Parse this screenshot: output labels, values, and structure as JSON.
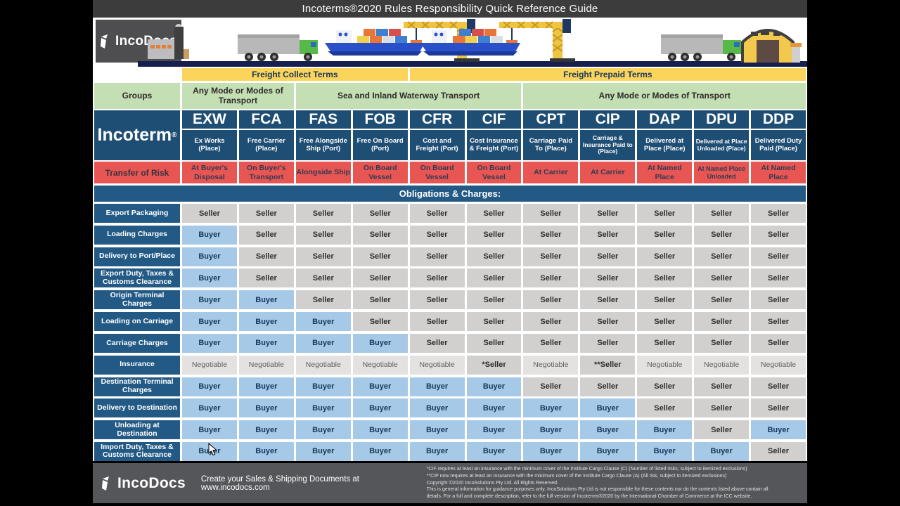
{
  "title": "Incoterms®2020 Rules Responsibility Quick Reference Guide",
  "brand": {
    "logo_text": "IncoDocs",
    "footer_logo_text": "IncoDocs",
    "tagline": "Create your Sales & Shipping Documents at www.incodocs.com"
  },
  "header": {
    "freight_collect": "Freight Collect Terms",
    "freight_prepaid": "Freight Prepaid Terms",
    "groups_label": "Groups",
    "group_modes": [
      "Any Mode or Modes of Transport",
      "Sea and Inland Waterway Transport",
      "Any Mode or Modes of Transport"
    ],
    "incoterm_label": "Incoterm",
    "incoterm_reg": "®",
    "risk_label": "Transfer of Risk",
    "obligations_label": "Obligations & Charges:"
  },
  "incoterms": [
    {
      "code": "EXW",
      "name": "Ex Works (Place)",
      "risk": "At Buyer's Disposal"
    },
    {
      "code": "FCA",
      "name": "Free Carrier (Place)",
      "risk": "On Buyer's Transport"
    },
    {
      "code": "FAS",
      "name": "Free Alongside Ship (Port)",
      "risk": "Alongside Ship"
    },
    {
      "code": "FOB",
      "name": "Free On Board (Port)",
      "risk": "On Board Vessel"
    },
    {
      "code": "CFR",
      "name": "Cost and Freight (Port)",
      "risk": "On Board Vessel"
    },
    {
      "code": "CIF",
      "name": "Cost Insurance & Freight (Port)",
      "risk": "On Board Vessel"
    },
    {
      "code": "CPT",
      "name": "Carriage Paid To (Place)",
      "risk": "At Carrier"
    },
    {
      "code": "CIP",
      "name": "Carriage & Insurance Paid to (Place)",
      "risk": "At Carrier"
    },
    {
      "code": "DAP",
      "name": "Delivered at Place (Place)",
      "risk": "At Named Place"
    },
    {
      "code": "DPU",
      "name": "Delivered at Place Unloaded (Place)",
      "risk": "At Named Place Unloaded"
    },
    {
      "code": "DDP",
      "name": "Delivered Duty Paid (Place)",
      "risk": "At Named Place"
    }
  ],
  "obligations": {
    "rows": [
      {
        "label": "Export Packaging",
        "values": [
          "Seller",
          "Seller",
          "Seller",
          "Seller",
          "Seller",
          "Seller",
          "Seller",
          "Seller",
          "Seller",
          "Seller",
          "Seller"
        ]
      },
      {
        "label": "Loading Charges",
        "values": [
          "Buyer",
          "Seller",
          "Seller",
          "Seller",
          "Seller",
          "Seller",
          "Seller",
          "Seller",
          "Seller",
          "Seller",
          "Seller"
        ]
      },
      {
        "label": "Delivery to Port/Place",
        "values": [
          "Buyer",
          "Seller",
          "Seller",
          "Seller",
          "Seller",
          "Seller",
          "Seller",
          "Seller",
          "Seller",
          "Seller",
          "Seller"
        ]
      },
      {
        "label": "Export Duty, Taxes & Customs Clearance",
        "values": [
          "Buyer",
          "Seller",
          "Seller",
          "Seller",
          "Seller",
          "Seller",
          "Seller",
          "Seller",
          "Seller",
          "Seller",
          "Seller"
        ]
      },
      {
        "label": "Origin Terminal Charges",
        "values": [
          "Buyer",
          "Buyer",
          "Seller",
          "Seller",
          "Seller",
          "Seller",
          "Seller",
          "Seller",
          "Seller",
          "Seller",
          "Seller"
        ]
      },
      {
        "label": "Loading on Carriage",
        "values": [
          "Buyer",
          "Buyer",
          "Buyer",
          "Seller",
          "Seller",
          "Seller",
          "Seller",
          "Seller",
          "Seller",
          "Seller",
          "Seller"
        ]
      },
      {
        "label": "Carriage Charges",
        "values": [
          "Buyer",
          "Buyer",
          "Buyer",
          "Buyer",
          "Seller",
          "Seller",
          "Seller",
          "Seller",
          "Seller",
          "Seller",
          "Seller"
        ]
      },
      {
        "label": "Insurance",
        "values": [
          "Negotiable",
          "Negotiable",
          "Negotiable",
          "Negotiable",
          "Negotiable",
          "*Seller",
          "Negotiable",
          "**Seller",
          "Negotiable",
          "Negotiable",
          "Negotiable"
        ]
      },
      {
        "label": "Destination Terminal Charges",
        "values": [
          "Buyer",
          "Buyer",
          "Buyer",
          "Buyer",
          "Buyer",
          "Buyer",
          "Seller",
          "Seller",
          "Seller",
          "Seller",
          "Seller"
        ]
      },
      {
        "label": "Delivery to Destination",
        "values": [
          "Buyer",
          "Buyer",
          "Buyer",
          "Buyer",
          "Buyer",
          "Buyer",
          "Buyer",
          "Buyer",
          "Seller",
          "Seller",
          "Seller"
        ]
      },
      {
        "label": "Unloading at Destination",
        "values": [
          "Buyer",
          "Buyer",
          "Buyer",
          "Buyer",
          "Buyer",
          "Buyer",
          "Buyer",
          "Buyer",
          "Buyer",
          "Seller",
          "Buyer"
        ]
      },
      {
        "label": "Import Duty, Taxes & Customs Clearance",
        "values": [
          "Buyer",
          "Buyer",
          "Buyer",
          "Buyer",
          "Buyer",
          "Buyer",
          "Buyer",
          "Buyer",
          "Buyer",
          "Buyer",
          "Seller"
        ]
      }
    ]
  },
  "footer": {
    "notes": [
      "*CIF requires at least an insurance with the minimum cover of the Institute Cargo Clause (C) (Number of listed risks, subject to itemized exclusions)",
      "**CIP now requires at least an insurance with the minimum cover of the Institute Cargo Clause (A) (All risk, subject to itemized exclusions)",
      "Copyright ©2020 IncoSolutions Pty Ltd. All Rights Reserved.",
      "This is general information for guidance purposes only. IncoSolutions Pty Ltd is not responsible for these contents nor do the contents listed above contain all",
      "details.  For a full and complete description, refer to the full version of Incoterms®2020 by the International Chamber of Commerce at the ICC website."
    ]
  },
  "colors": {
    "navy_header": "#1f4e74",
    "navy_label": "#235a85",
    "risk_red": "#e85654",
    "freight_yellow": "#fbd45b",
    "groups_green": "#c5dfb4",
    "seller_gray": "#d2d0ce",
    "buyer_blue": "#a5c9e6",
    "negotiable_gray": "#e4e2e0",
    "titlebar_gray": "#3c3c3c",
    "footer_gray": "#55565a"
  }
}
